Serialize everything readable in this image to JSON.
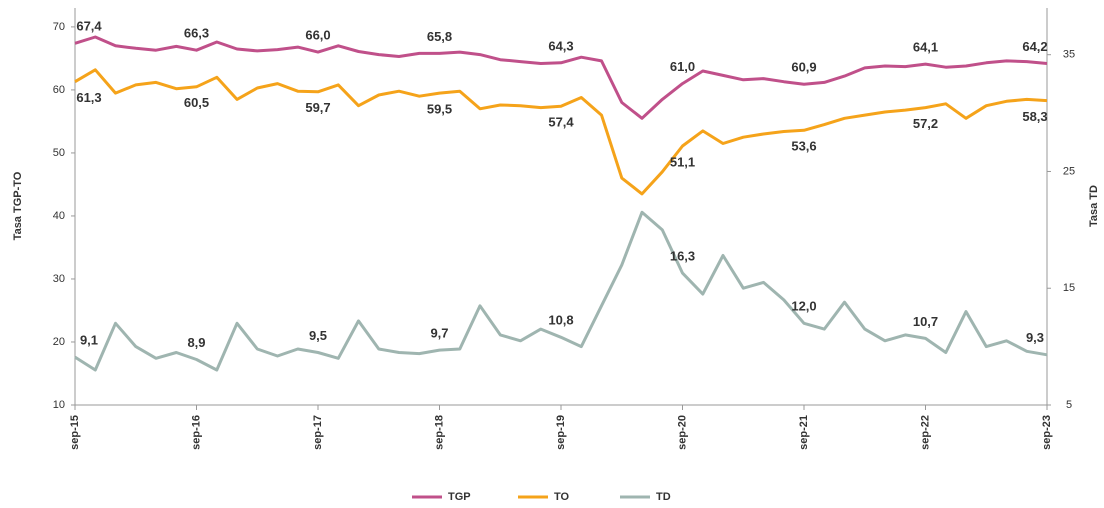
{
  "chart_data": {
    "type": "line",
    "y_label": "Tasa TGP-TO",
    "y2_label": "Tasa TD",
    "categories": [
      "sep-15",
      null,
      null,
      null,
      null,
      null,
      "sep-16",
      null,
      null,
      null,
      null,
      null,
      "sep-17",
      null,
      null,
      null,
      null,
      null,
      "sep-18",
      null,
      null,
      null,
      null,
      null,
      "sep-19",
      null,
      null,
      null,
      null,
      null,
      "sep-20",
      null,
      null,
      null,
      null,
      null,
      "sep-21",
      null,
      null,
      null,
      null,
      null,
      "sep-22",
      null,
      null,
      null,
      null,
      null,
      "sep-23"
    ],
    "ylim": [
      10,
      73
    ],
    "yticks": [
      10,
      20,
      30,
      40,
      50,
      60,
      70
    ],
    "y2lim": [
      5,
      39
    ],
    "y2ticks": [
      5,
      15,
      25,
      35
    ],
    "legend": "bottom",
    "series": [
      {
        "name": "TGP",
        "color": "#c0508a",
        "values": [
          67.4,
          68.4,
          67.0,
          66.6,
          66.3,
          66.9,
          66.3,
          67.6,
          66.5,
          66.2,
          66.4,
          66.8,
          66.0,
          67.0,
          66.1,
          65.6,
          65.3,
          65.8,
          65.8,
          66.0,
          65.6,
          64.8,
          64.5,
          64.2,
          64.3,
          65.2,
          64.6,
          58.0,
          55.5,
          58.5,
          61.0,
          63.0,
          62.3,
          61.6,
          61.8,
          61.3,
          60.9,
          61.2,
          62.2,
          63.5,
          63.8,
          63.7,
          64.1,
          63.6,
          63.8,
          64.3,
          64.6,
          64.5,
          64.2
        ],
        "value_labels": [
          "67,4",
          null,
          null,
          null,
          null,
          null,
          "66,3",
          null,
          null,
          null,
          null,
          null,
          "66,0",
          null,
          null,
          null,
          null,
          null,
          "65,8",
          null,
          null,
          null,
          null,
          null,
          "64,3",
          null,
          null,
          null,
          null,
          null,
          "61,0",
          null,
          null,
          null,
          null,
          null,
          "60,9",
          null,
          null,
          null,
          null,
          null,
          "64,1",
          null,
          null,
          null,
          null,
          null,
          "64,2"
        ]
      },
      {
        "name": "TO",
        "color": "#f5a31a",
        "values": [
          61.3,
          63.2,
          59.5,
          60.8,
          61.2,
          60.2,
          60.5,
          62.0,
          58.5,
          60.3,
          61.0,
          59.8,
          59.7,
          60.8,
          57.5,
          59.2,
          59.8,
          59.0,
          59.5,
          59.8,
          57.0,
          57.6,
          57.5,
          57.2,
          57.4,
          58.8,
          56.0,
          46.0,
          43.5,
          47.0,
          51.1,
          53.5,
          51.5,
          52.5,
          53.0,
          53.4,
          53.6,
          54.5,
          55.5,
          56.0,
          56.5,
          56.8,
          57.2,
          57.8,
          55.5,
          57.5,
          58.2,
          58.5,
          58.3
        ],
        "value_labels": [
          "61,3",
          null,
          null,
          null,
          null,
          null,
          "60,5",
          null,
          null,
          null,
          null,
          null,
          "59,7",
          null,
          null,
          null,
          null,
          null,
          "59,5",
          null,
          null,
          null,
          null,
          null,
          "57,4",
          null,
          null,
          null,
          null,
          null,
          "51,1",
          null,
          null,
          null,
          null,
          null,
          "53,6",
          null,
          null,
          null,
          null,
          null,
          "57,2",
          null,
          null,
          null,
          null,
          null,
          "58,3"
        ]
      },
      {
        "name": "TD",
        "color": "#9fb5b0",
        "axis": "y2",
        "values": [
          9.1,
          8.0,
          12.0,
          10.0,
          9.0,
          9.5,
          8.9,
          8.0,
          12.0,
          9.8,
          9.2,
          9.8,
          9.5,
          9.0,
          12.2,
          9.8,
          9.5,
          9.4,
          9.7,
          9.8,
          13.5,
          11.0,
          10.5,
          11.5,
          10.8,
          10.0,
          13.5,
          17.0,
          21.5,
          20.0,
          16.3,
          14.5,
          17.8,
          15.0,
          15.5,
          14.0,
          12.0,
          11.5,
          13.8,
          11.5,
          10.5,
          11.0,
          10.7,
          9.5,
          13.0,
          10.0,
          10.5,
          9.6,
          9.3
        ],
        "value_labels": [
          "9,1",
          null,
          null,
          null,
          null,
          null,
          "8,9",
          null,
          null,
          null,
          null,
          null,
          "9,5",
          null,
          null,
          null,
          null,
          null,
          "9,7",
          null,
          null,
          null,
          null,
          null,
          "10,8",
          null,
          null,
          null,
          null,
          null,
          "16,3",
          null,
          null,
          null,
          null,
          null,
          "12,0",
          null,
          null,
          null,
          null,
          null,
          "10,7",
          null,
          null,
          null,
          null,
          null,
          "9,3"
        ]
      }
    ]
  }
}
